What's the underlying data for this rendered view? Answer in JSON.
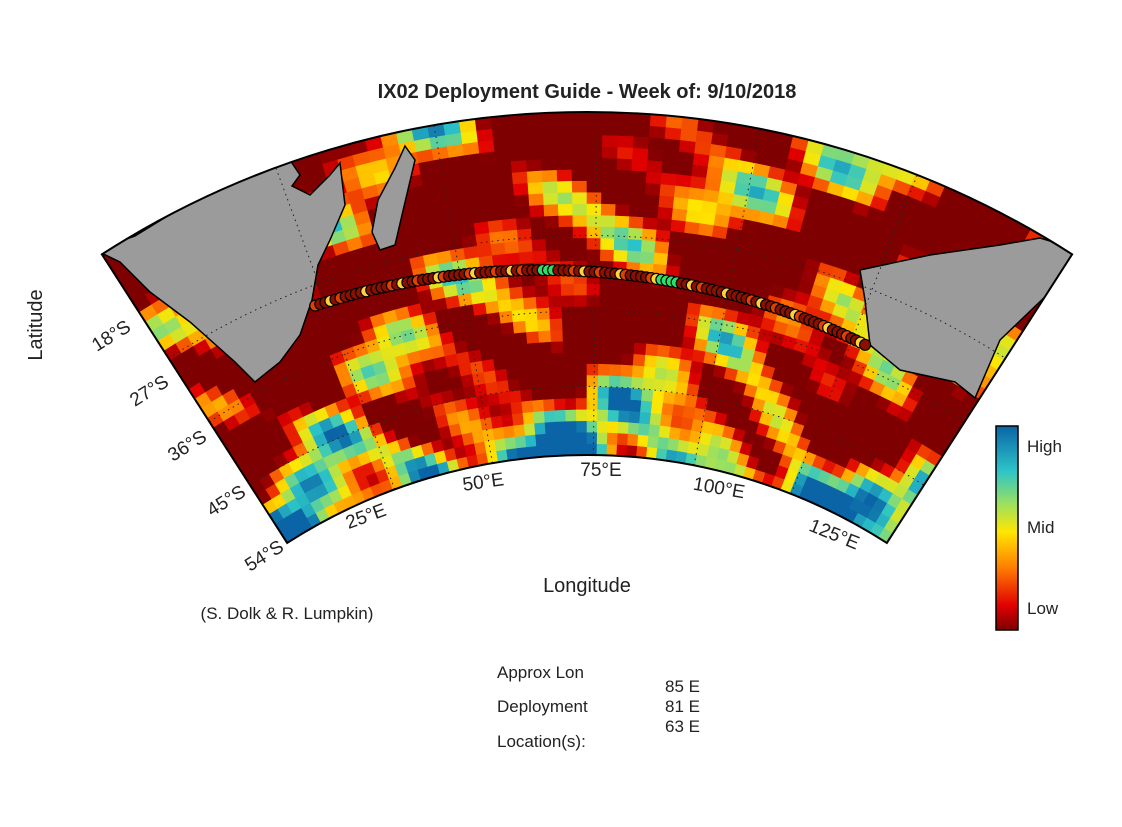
{
  "map": {
    "title": "IX02 Deployment Guide - Week of: 9/10/2018",
    "xlabel": "Longitude",
    "ylabel": "Latitude",
    "lon_ticks": [
      "25°E",
      "50°E",
      "75°E",
      "100°E",
      "125°E"
    ],
    "lat_ticks": [
      "18°S",
      "27°S",
      "36°S",
      "45°S",
      "54°S"
    ]
  },
  "colorbar": {
    "labels": [
      "High",
      "Mid",
      "Low"
    ]
  },
  "credit": "(S. Dolk & R. Lumpkin)",
  "info": {
    "labels": [
      "Approx Lon",
      "Deployment",
      "Location(s):"
    ],
    "values": [
      "85 E",
      "81 E",
      "63 E"
    ]
  }
}
